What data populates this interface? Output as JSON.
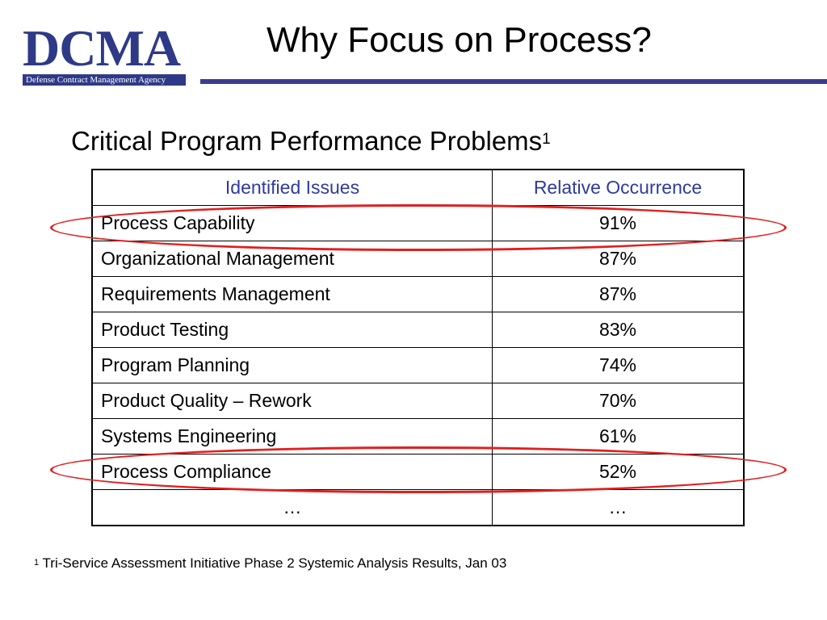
{
  "logo": {
    "wordmark": "DCMA",
    "agency": "Defense Contract Management Agency"
  },
  "title": "Why Focus on Process?",
  "subtitle": {
    "text": "Critical Program Performance Problems",
    "footnote_marker": "1"
  },
  "table": {
    "headers": [
      "Identified Issues",
      "Relative Occurrence"
    ],
    "rows": [
      {
        "issue": "Process Capability",
        "occurrence": "91%"
      },
      {
        "issue": "Organizational Management",
        "occurrence": "87%"
      },
      {
        "issue": "Requirements Management",
        "occurrence": "87%"
      },
      {
        "issue": "Product Testing",
        "occurrence": "83%"
      },
      {
        "issue": "Program Planning",
        "occurrence": "74%"
      },
      {
        "issue": "Product Quality – Rework",
        "occurrence": "70%"
      },
      {
        "issue": "Systems Engineering",
        "occurrence": "61%"
      },
      {
        "issue": "Process Compliance",
        "occurrence": "52%"
      },
      {
        "issue": "…",
        "occurrence": "…"
      }
    ]
  },
  "highlighted_rows": [
    "Process Capability",
    "Process Compliance"
  ],
  "footnote": {
    "marker": "1",
    "text": "Tri-Service Assessment Initiative Phase 2 Systemic Analysis Results, Jan 03"
  },
  "colors": {
    "brand": "#2e3a87",
    "header_text": "#2e3a9f",
    "highlight": "#e02020"
  }
}
